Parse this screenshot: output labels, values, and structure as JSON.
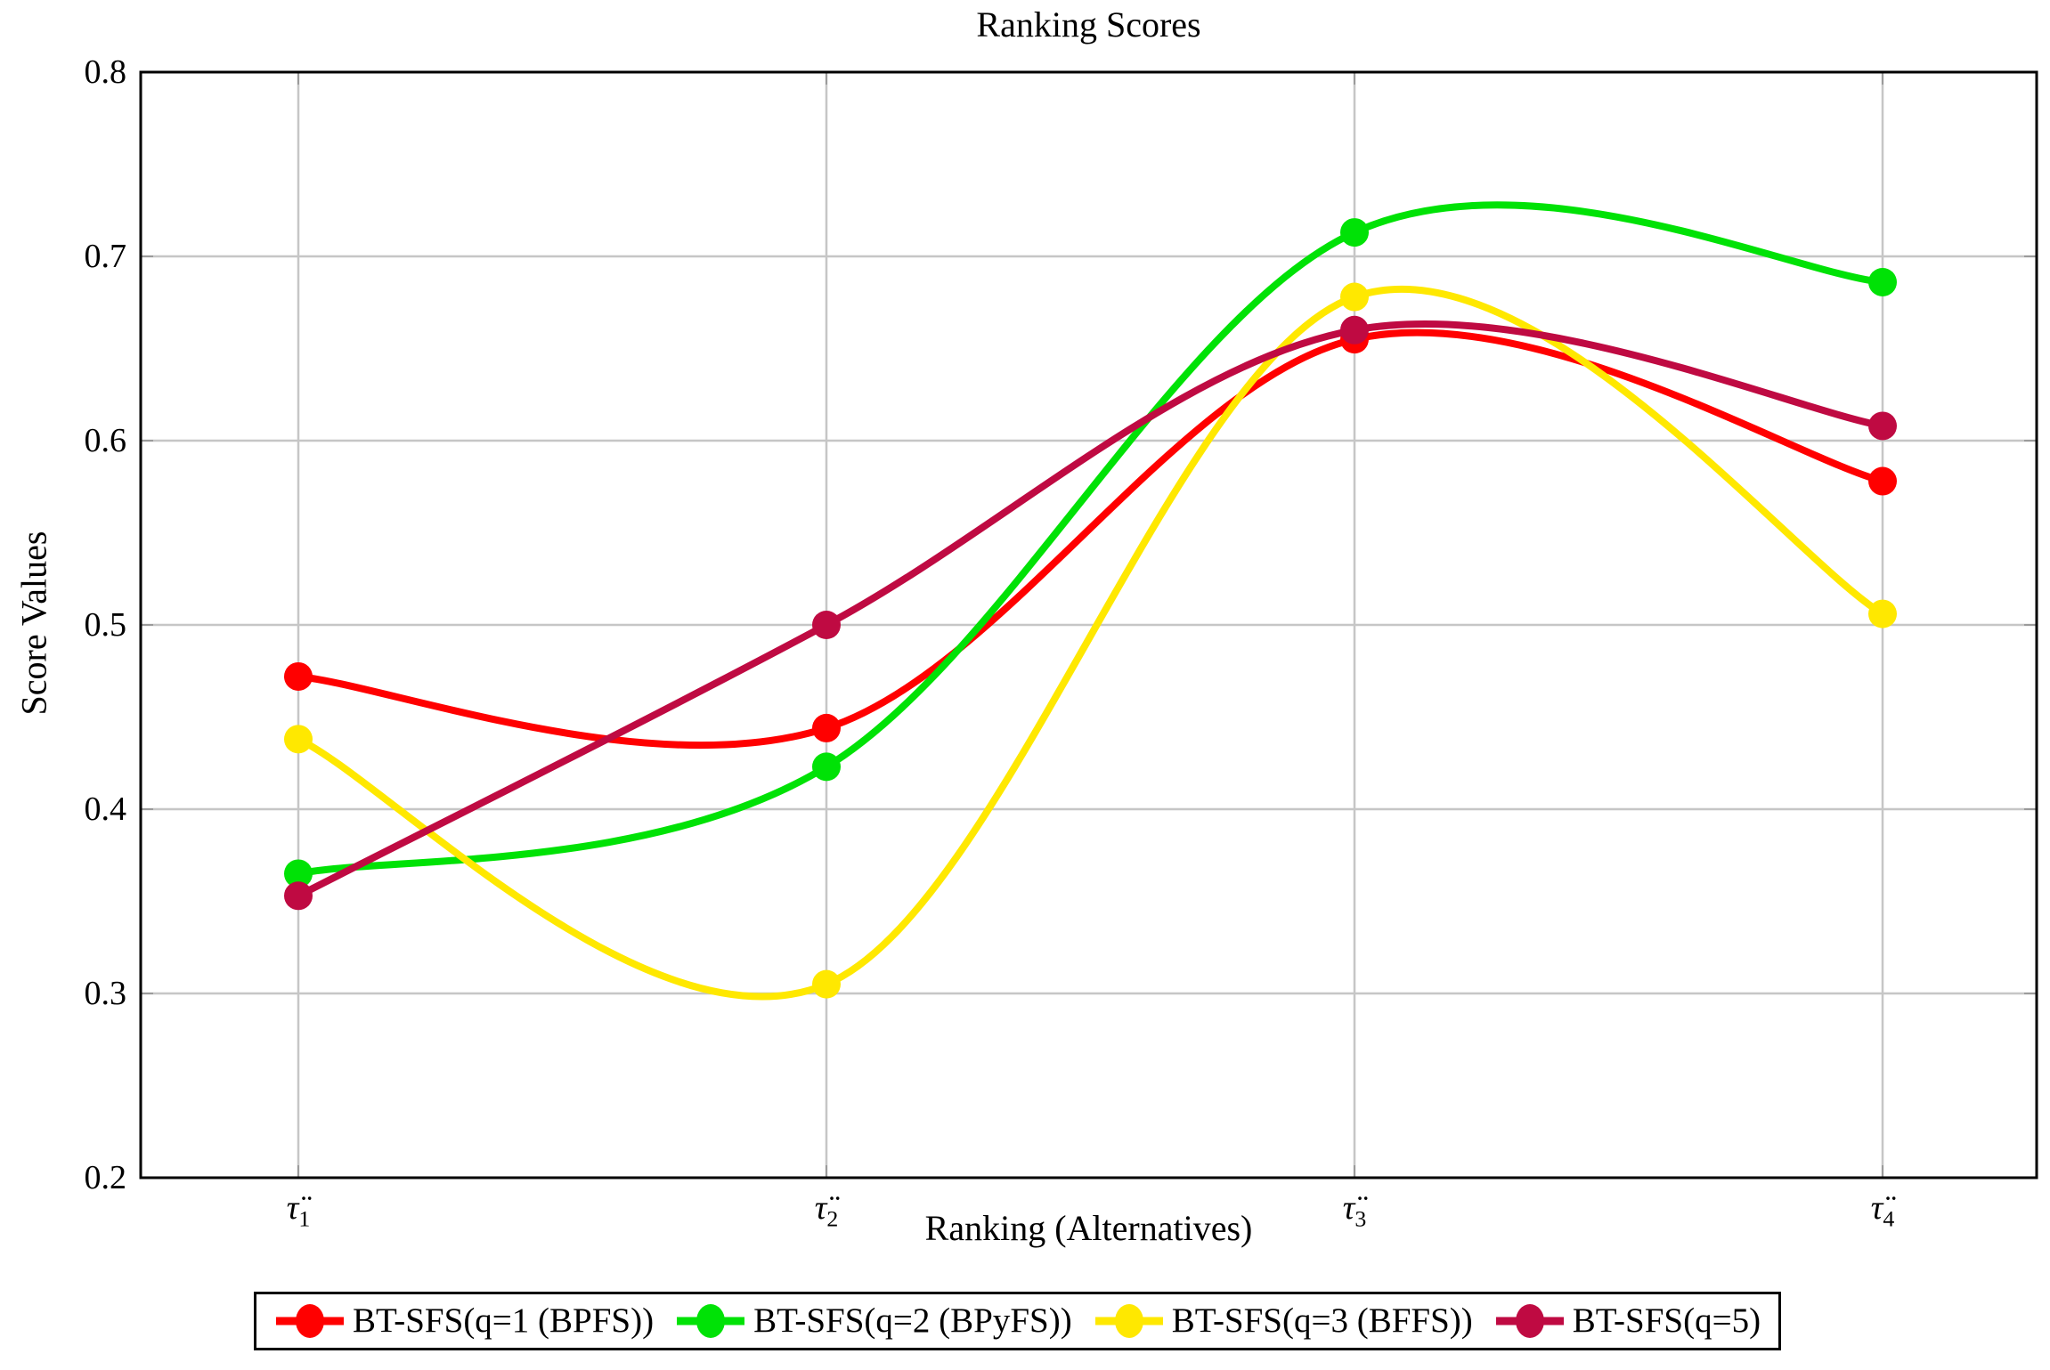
{
  "chart_data": {
    "type": "line",
    "title": "Ranking Scores",
    "xlabel": "Ranking (Alternatives)",
    "ylabel": "Score Values",
    "x_tick_labels": [
      {
        "base": "τ̈",
        "sub": "1"
      },
      {
        "base": "τ̈",
        "sub": "2"
      },
      {
        "base": "τ̈",
        "sub": "3"
      },
      {
        "base": "τ̈",
        "sub": "4"
      }
    ],
    "y_tick_labels": [
      "0.2",
      "0.3",
      "0.4",
      "0.5",
      "0.6",
      "0.7",
      "0.8"
    ],
    "ylim": [
      0.2,
      0.8
    ],
    "grid": true,
    "smooth": true,
    "legend_position": "below",
    "series": [
      {
        "name": "BT-SFS(q=1 (BPFS))",
        "color": "#ff0000",
        "values": [
          0.472,
          0.444,
          0.655,
          0.578
        ]
      },
      {
        "name": "BT-SFS(q=2 (BPyFS))",
        "color": "#00e206",
        "values": [
          0.365,
          0.423,
          0.713,
          0.686
        ]
      },
      {
        "name": "BT-SFS(q=3 (BFFS))",
        "color": "#ffe800",
        "values": [
          0.438,
          0.305,
          0.678,
          0.506
        ]
      },
      {
        "name": "BT-SFS(q=5)",
        "color": "#bf0a42",
        "values": [
          0.353,
          0.5,
          0.66,
          0.608
        ]
      }
    ],
    "style_colors": {
      "grid": "#c6c6c6",
      "frame": "#000000",
      "tick": "#9b9b9b",
      "background": "#ffffff"
    }
  }
}
